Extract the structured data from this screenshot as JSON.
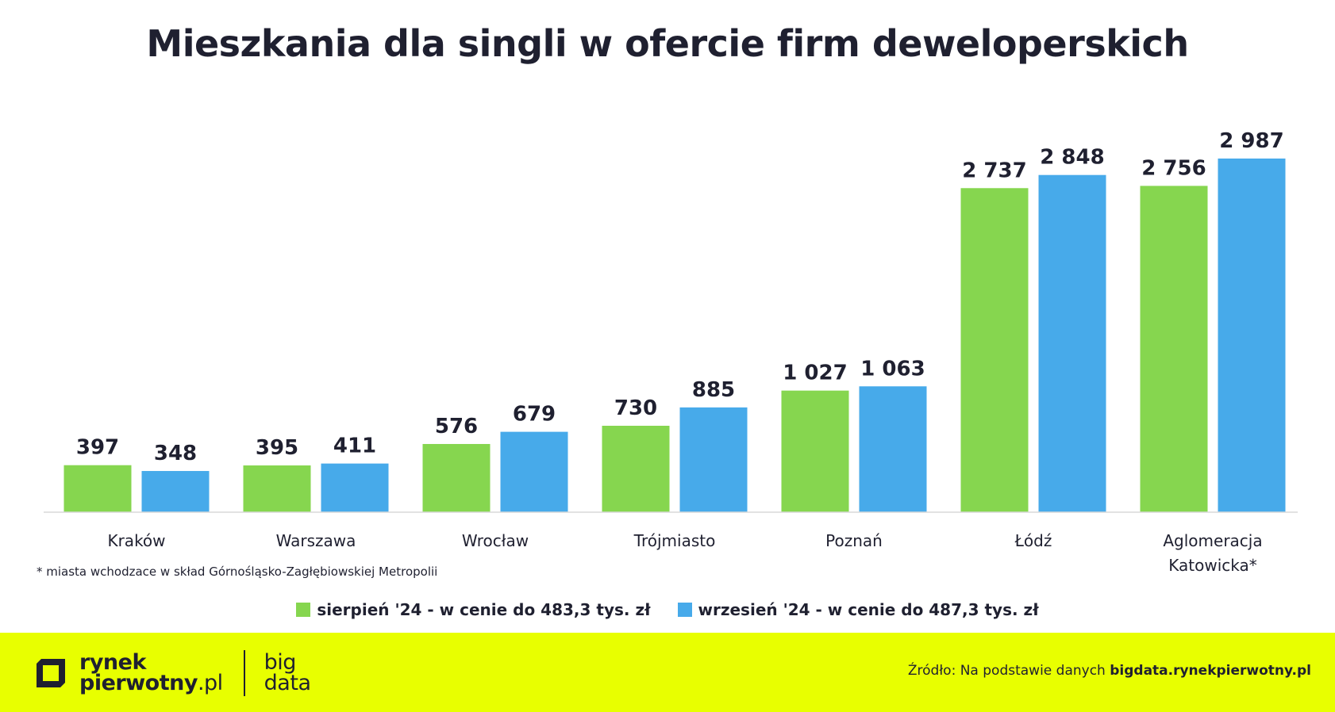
{
  "title": "Mieszkania dla singli w ofercie firm deweloperskich",
  "chart_data": {
    "type": "bar",
    "title": "Mieszkania dla singli w ofercie firm deweloperskich",
    "categories": [
      [
        "Kraków"
      ],
      [
        "Warszawa"
      ],
      [
        "Wrocław"
      ],
      [
        "Trójmiasto"
      ],
      [
        "Poznań"
      ],
      [
        "Łódź"
      ],
      [
        "Aglomeracja",
        "Katowicka*"
      ]
    ],
    "series": [
      {
        "name": "sierpień '24 - w cenie do 483,3 tys. zł",
        "color": "#86d64f",
        "values": [
          397,
          395,
          576,
          730,
          1027,
          2737,
          2756
        ],
        "labels": [
          "397",
          "395",
          "576",
          "730",
          "1 027",
          "2 737",
          "2 756"
        ]
      },
      {
        "name": "wrzesień '24 - w cenie do 487,3 tys. zł",
        "color": "#47aaea",
        "values": [
          348,
          411,
          679,
          885,
          1063,
          2848,
          2987
        ],
        "labels": [
          "348",
          "411",
          "679",
          "885",
          "1 063",
          "2 848",
          "2 987"
        ]
      }
    ],
    "ylim": [
      0,
      3200
    ],
    "xlabel": "",
    "ylabel": "",
    "grid": false
  },
  "footnote": "* miasta wchodzace w skład Górnośląsko-Zagłębiowskiej Metropolii",
  "legend": [
    {
      "label": "sierpień '24 - w cenie do 483,3 tys. zł",
      "color": "#86d64f"
    },
    {
      "label": "wrzesień '24 - w cenie do 487,3 tys. zł",
      "color": "#47aaea"
    }
  ],
  "footer": {
    "logo_line1": "rynek",
    "logo_line2": "pierwotny",
    "logo_suffix": ".pl",
    "bigdata_line1": "big",
    "bigdata_line2": "data",
    "source_prefix": "Źródło: Na podstawie danych ",
    "source_link": "bigdata.rynekpierwotny.pl",
    "band_color": "#e8ff00"
  }
}
